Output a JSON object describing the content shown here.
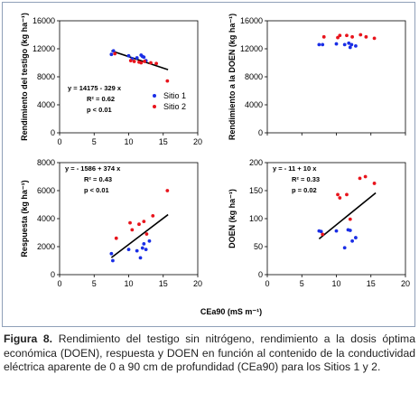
{
  "caption": {
    "label": "Figura 8.",
    "text": " Rendimiento del testigo sin nitrógeno, rendimiento a la dosis óptima económica (DOEN), respuesta y DOEN en función al contenido de la conductividad eléctrica aparente de 0 a 90 cm de profundidad (CEa90) para los Sitios 1 y 2."
  },
  "shared_xlabel": "CEa90 (mS m⁻¹)",
  "colors": {
    "sitio1": "#1a2ee6",
    "sitio2": "#e8141c",
    "line": "#000000"
  },
  "chart_data": [
    {
      "id": "testigo",
      "type": "scatter",
      "ylabel": "Rendimiento del testigo (kg ha⁻¹)",
      "xlim": [
        0,
        20
      ],
      "ylim": [
        0,
        16000
      ],
      "xticks": [
        "0",
        "5",
        "10",
        "15",
        "20"
      ],
      "yticks": [
        "0",
        "4000",
        "8000",
        "12000",
        "16000"
      ],
      "series": [
        {
          "name": "Sitio 1",
          "color": "#1a2ee6",
          "points": [
            [
              7.5,
              11200
            ],
            [
              7.8,
              11700
            ],
            [
              10,
              11000
            ],
            [
              10.5,
              10600
            ],
            [
              11.2,
              10700
            ],
            [
              11.8,
              11100
            ],
            [
              12,
              10900
            ],
            [
              12.2,
              10800
            ],
            [
              12.5,
              10300
            ]
          ]
        },
        {
          "name": "Sitio 2",
          "color": "#e8141c",
          "points": [
            [
              8,
              11300
            ],
            [
              10.3,
              10300
            ],
            [
              10.8,
              10200
            ],
            [
              11.5,
              10100
            ],
            [
              11.8,
              10000
            ],
            [
              12.3,
              10200
            ],
            [
              13.2,
              10000
            ],
            [
              14,
              9900
            ],
            [
              15.6,
              7400
            ]
          ]
        }
      ],
      "fit": {
        "x": [
          7.5,
          15.7
        ],
        "slope": -329,
        "intercept": 14175
      },
      "annotations": [
        "y = 14175 - 329 x",
        "R² = 0.62",
        "p < 0.01"
      ],
      "legend": [
        "Sitio 1",
        "Sitio 2"
      ]
    },
    {
      "id": "doen-rend",
      "type": "scatter",
      "ylabel": "Rendimiento a la DOEN (kg ha⁻¹)",
      "xlim": [
        0,
        20
      ],
      "ylim": [
        0,
        16000
      ],
      "xticks": [],
      "yticks": [
        "0",
        "4000",
        "8000",
        "12000",
        "16000"
      ],
      "series": [
        {
          "name": "Sitio 1",
          "color": "#1a2ee6",
          "points": [
            [
              7.5,
              12600
            ],
            [
              8,
              12600
            ],
            [
              10,
              12700
            ],
            [
              11.2,
              12600
            ],
            [
              11.8,
              12800
            ],
            [
              12,
              12200
            ],
            [
              12.2,
              12600
            ],
            [
              12.8,
              12400
            ]
          ]
        },
        {
          "name": "Sitio 2",
          "color": "#e8141c",
          "points": [
            [
              8.2,
              13700
            ],
            [
              10.2,
              13600
            ],
            [
              10.5,
              13900
            ],
            [
              11.5,
              13900
            ],
            [
              12.3,
              13700
            ],
            [
              13.5,
              14000
            ],
            [
              14.3,
              13700
            ],
            [
              15.5,
              13500
            ]
          ]
        }
      ],
      "fit": null,
      "annotations": [],
      "legend": []
    },
    {
      "id": "respuesta",
      "type": "scatter",
      "ylabel": "Respuesta (kg ha⁻¹)",
      "xlim": [
        0,
        20
      ],
      "ylim": [
        0,
        8000
      ],
      "xticks": [
        "0",
        "5",
        "10",
        "15",
        "20"
      ],
      "yticks": [
        "0",
        "2000",
        "4000",
        "6000",
        "8000"
      ],
      "series": [
        {
          "name": "Sitio 1",
          "color": "#1a2ee6",
          "points": [
            [
              7.5,
              1500
            ],
            [
              7.7,
              1000
            ],
            [
              10,
              1800
            ],
            [
              11.2,
              1700
            ],
            [
              11.7,
              1200
            ],
            [
              12,
              1900
            ],
            [
              12.2,
              2200
            ],
            [
              12.5,
              1800
            ],
            [
              13,
              2400
            ]
          ]
        },
        {
          "name": "Sitio 2",
          "color": "#e8141c",
          "points": [
            [
              8.2,
              2600
            ],
            [
              10.2,
              3700
            ],
            [
              10.5,
              3200
            ],
            [
              11.5,
              3600
            ],
            [
              12.2,
              3800
            ],
            [
              12.6,
              2900
            ],
            [
              13.5,
              4200
            ],
            [
              15.6,
              6000
            ]
          ]
        }
      ],
      "fit": {
        "x": [
          7.5,
          15.7
        ],
        "slope": 374,
        "intercept": -1586
      },
      "annotations": [
        "y = - 1586 + 374 x",
        "R² = 0.43",
        "p < 0.01"
      ],
      "legend": []
    },
    {
      "id": "doen",
      "type": "scatter",
      "ylabel": "DOEN (kg ha⁻¹)",
      "xlim": [
        0,
        20
      ],
      "ylim": [
        0,
        200
      ],
      "xticks": [
        "0",
        "5",
        "10",
        "15",
        "20"
      ],
      "yticks": [
        "0",
        "50",
        "100",
        "150",
        "200"
      ],
      "series": [
        {
          "name": "Sitio 1",
          "color": "#1a2ee6",
          "points": [
            [
              7.5,
              78
            ],
            [
              7.8,
              77
            ],
            [
              10,
              78
            ],
            [
              11.2,
              48
            ],
            [
              11.7,
              80
            ],
            [
              12,
              79
            ],
            [
              12.3,
              60
            ],
            [
              12.8,
              66
            ]
          ]
        },
        {
          "name": "Sitio 2",
          "color": "#e8141c",
          "points": [
            [
              8,
              72
            ],
            [
              10.2,
              143
            ],
            [
              10.5,
              137
            ],
            [
              11.5,
              143
            ],
            [
              12,
              99
            ],
            [
              13.4,
              172
            ],
            [
              14.2,
              175
            ],
            [
              15.5,
              163
            ]
          ]
        }
      ],
      "fit": {
        "x": [
          7.5,
          15.7
        ],
        "slope": 10,
        "intercept": -11
      },
      "annotations": [
        "y = - 11 + 10 x",
        "R² = 0.33",
        "p = 0.02"
      ],
      "legend": []
    }
  ]
}
